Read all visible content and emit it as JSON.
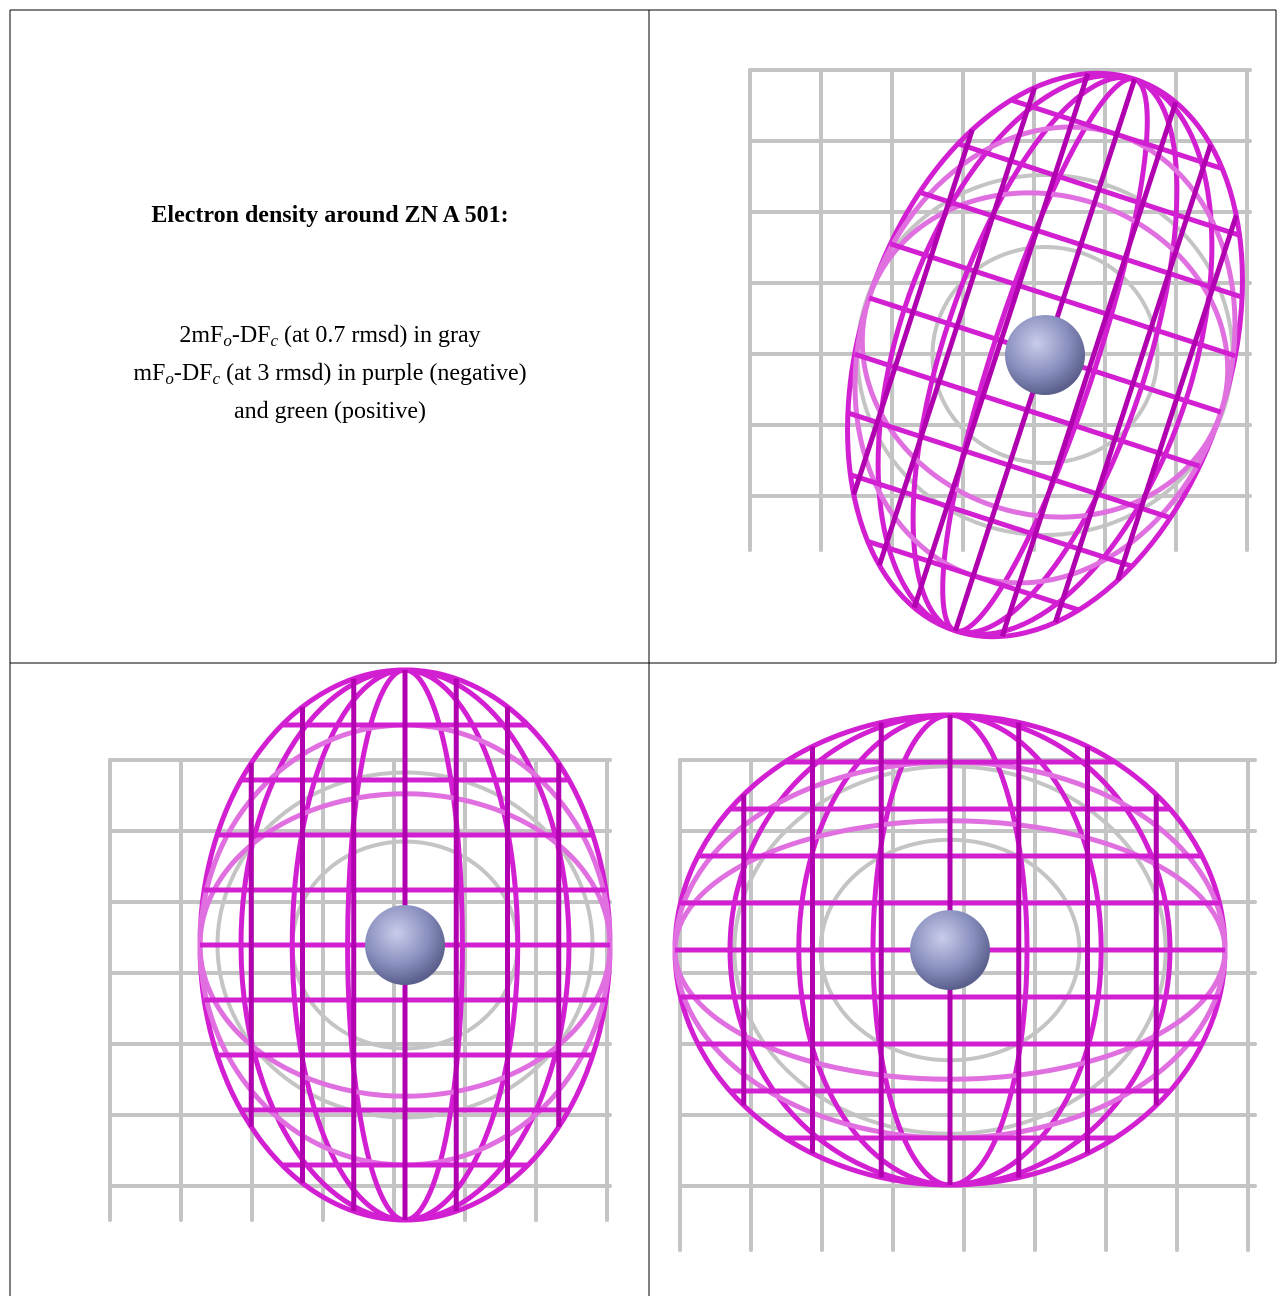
{
  "panel_text": {
    "title": "Electron density around ZN A 501:",
    "lines": [
      [
        "2mF",
        "o",
        "-DF",
        "c",
        " (at 0.7 rmsd) in gray"
      ],
      [
        "mF",
        "o",
        "-DF",
        "c",
        " (at 3 rmsd) in purple (negative)"
      ],
      [
        "and green (positive)"
      ]
    ]
  }
}
